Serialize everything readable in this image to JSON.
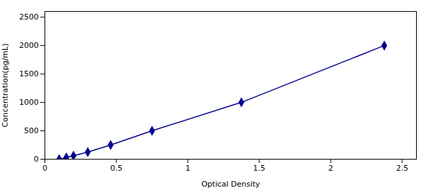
{
  "chart_data": {
    "type": "line",
    "x": [
      0.1,
      0.15,
      0.2,
      0.3,
      0.46,
      0.75,
      1.375,
      2.375
    ],
    "series": [
      {
        "values": [
          0,
          31,
          62,
          125,
          250,
          500,
          1000,
          2000
        ],
        "color": "#00008B",
        "marker": "diamond",
        "line_style": "solid"
      }
    ],
    "xlabel": "Optical Density",
    "ylabel": "Concentration(pg/mL)",
    "xlim": [
      0,
      2.6
    ],
    "ylim": [
      0,
      2600
    ],
    "xticks": [
      0,
      0.5,
      1,
      1.5,
      2,
      2.5
    ],
    "yticks": [
      0,
      500,
      1000,
      1500,
      2000,
      2500
    ],
    "grid": false
  }
}
